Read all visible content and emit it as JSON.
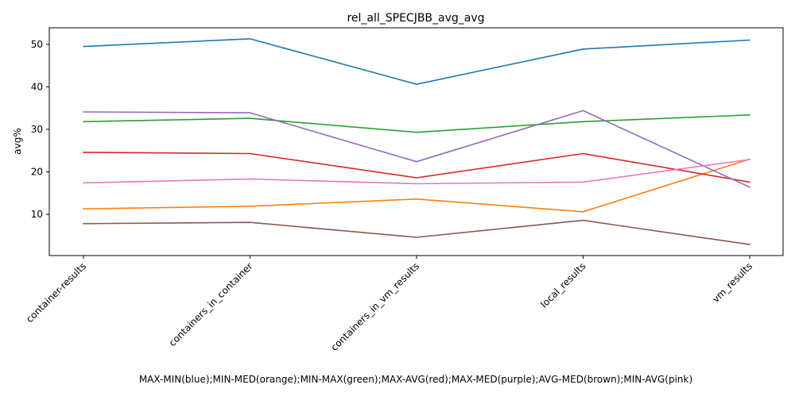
{
  "chart_data": {
    "type": "line",
    "title": "rel_all_SPECJBB_avg_avg",
    "xlabel": "MAX-MIN(blue);MIN-MED(orange);MIN-MAX(green);MAX-AVG(red);MAX-MED(purple);AVG-MED(brown);MIN-AVG(pink)",
    "ylabel": "avg%",
    "categories": [
      "container-results",
      "containers_in_container",
      "containers_in_vm_results",
      "local_results",
      "vm_results"
    ],
    "yticks": [
      10,
      20,
      30,
      40,
      50
    ],
    "ylim": [
      0.3,
      53.9
    ],
    "grid": false,
    "legend": "none",
    "series": [
      {
        "color": "#1f77b4",
        "values": [
          49.5,
          51.3,
          40.6,
          48.9,
          51.0
        ]
      },
      {
        "color": "#ff7f0e",
        "values": [
          11.3,
          11.9,
          13.6,
          10.6,
          23.0
        ]
      },
      {
        "color": "#2ca02c",
        "values": [
          31.8,
          32.6,
          29.3,
          31.8,
          33.4
        ]
      },
      {
        "color": "#d62728",
        "values": [
          24.6,
          24.3,
          18.6,
          24.3,
          17.6
        ]
      },
      {
        "color": "#9467bd",
        "values": [
          34.1,
          33.9,
          22.4,
          34.4,
          16.4
        ]
      },
      {
        "color": "#8c564b",
        "values": [
          7.8,
          8.1,
          4.6,
          8.6,
          2.9
        ]
      },
      {
        "color": "#e377c2",
        "values": [
          17.4,
          18.3,
          17.2,
          17.6,
          22.9
        ]
      }
    ]
  }
}
